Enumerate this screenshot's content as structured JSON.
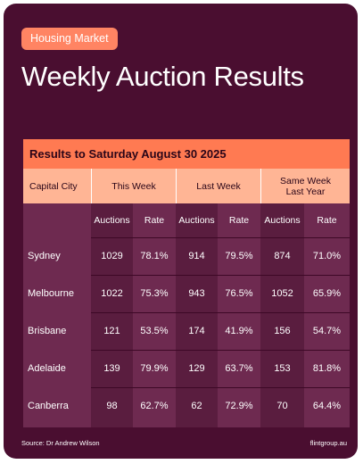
{
  "tag": "Housing Market",
  "title": "Weekly Auction Results",
  "table": {
    "header": "Results to Saturday August 30 2025",
    "groups": {
      "city": "Capital City",
      "this_week": "This Week",
      "last_week": "Last Week",
      "same_week_line1": "Same Week",
      "same_week_line2": "Last Year"
    },
    "sub": {
      "auctions": "Auctions",
      "rate": "Rate"
    },
    "rows": [
      {
        "city": "Sydney",
        "tw_auctions": "1029",
        "tw_rate": "78.1%",
        "lw_auctions": "914",
        "lw_rate": "79.5%",
        "ly_auctions": "874",
        "ly_rate": "71.0%"
      },
      {
        "city": "Melbourne",
        "tw_auctions": "1022",
        "tw_rate": "75.3%",
        "lw_auctions": "943",
        "lw_rate": "76.5%",
        "ly_auctions": "1052",
        "ly_rate": "65.9%"
      },
      {
        "city": "Brisbane",
        "tw_auctions": "121",
        "tw_rate": "53.5%",
        "lw_auctions": "174",
        "lw_rate": "41.9%",
        "ly_auctions": "156",
        "ly_rate": "54.7%"
      },
      {
        "city": "Adelaide",
        "tw_auctions": "139",
        "tw_rate": "79.9%",
        "lw_auctions": "129",
        "lw_rate": "63.7%",
        "ly_auctions": "153",
        "ly_rate": "81.8%"
      },
      {
        "city": "Canberra",
        "tw_auctions": "98",
        "tw_rate": "62.7%",
        "lw_auctions": "62",
        "lw_rate": "72.9%",
        "ly_auctions": "70",
        "ly_rate": "64.4%"
      }
    ]
  },
  "footer": {
    "source": "Source: Dr Andrew Wilson",
    "site": "flintgroup.au"
  },
  "colors": {
    "background": "#4a0e30",
    "accent": "#ff7a52",
    "header_band": "#ffb595"
  }
}
